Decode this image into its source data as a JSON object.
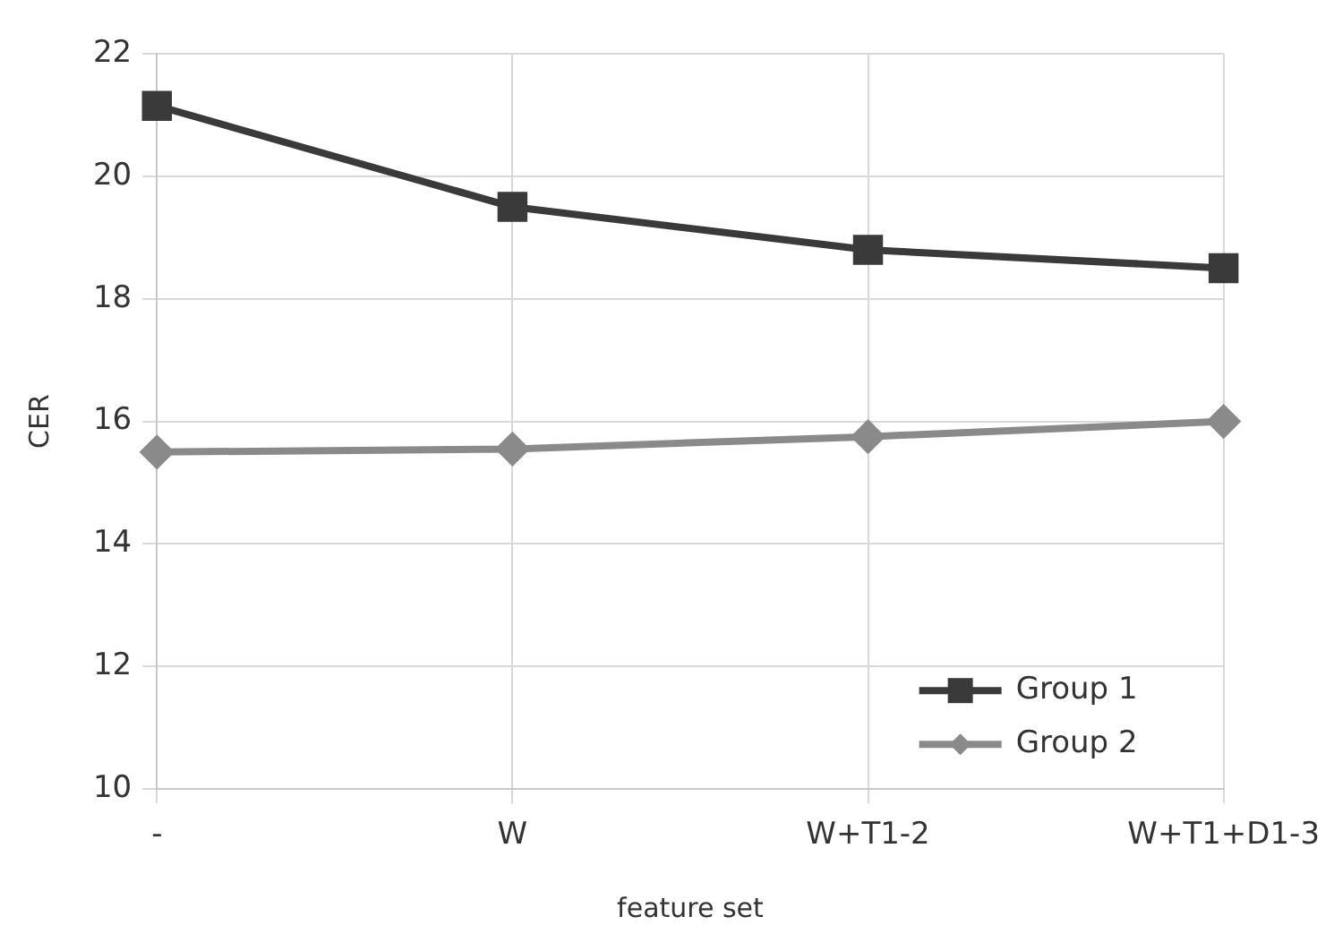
{
  "chart_data": {
    "type": "line",
    "xlabel": "feature set",
    "ylabel": "CER",
    "categories": [
      "-",
      "W",
      "W+T1-2",
      "W+T1+D1-3"
    ],
    "series": [
      {
        "name": "Group 1",
        "color": "#3a3a3a",
        "marker": "square",
        "values": [
          21.15,
          19.5,
          18.8,
          18.5
        ]
      },
      {
        "name": "Group 2",
        "color": "#8a8a8a",
        "marker": "diamond",
        "values": [
          15.5,
          15.55,
          15.75,
          16.0
        ]
      }
    ],
    "ylim": [
      10,
      22
    ],
    "yticks": [
      10,
      12,
      14,
      16,
      18,
      20,
      22
    ],
    "grid": true,
    "legend": "bottom right"
  }
}
